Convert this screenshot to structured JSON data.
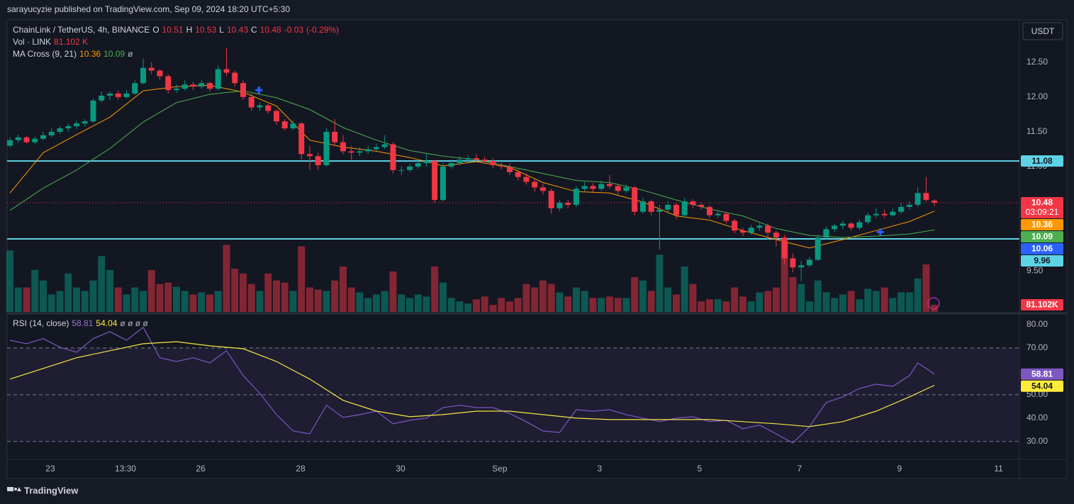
{
  "header": {
    "publisher": "sarayucyzie published on TradingView.com, Sep 09, 2024 18:20 UTC+5:30",
    "footer": "TradingView",
    "currency_button": "USDT"
  },
  "chart_data": {
    "type": "candlestick",
    "legend": {
      "symbol": "ChainLink / TetherUS, 4h, BINANCE",
      "o_label": "O",
      "open": 10.51,
      "h_label": "H",
      "high": 10.53,
      "l_label": "L",
      "low": 10.43,
      "c_label": "C",
      "close": 10.48,
      "change": -0.03,
      "change_pct": "(-0.29%)"
    },
    "volume_legend": {
      "name": "Vol · LINK",
      "value": "81.102 K"
    },
    "ma_legend": {
      "name": "MA Cross (9, 21)",
      "fast": 10.36,
      "slow": 10.09,
      "extra": "ø"
    },
    "colors": {
      "up": "#089981",
      "down": "#f23645"
    },
    "xlim": [
      -0.34,
      121.2
    ],
    "xticks": [
      {
        "value": 4.85,
        "label": "23"
      },
      {
        "value": 13.87,
        "label": "13:30"
      },
      {
        "value": 22.9,
        "label": "26"
      },
      {
        "value": 34.9,
        "label": "28"
      },
      {
        "value": 46.9,
        "label": "30"
      },
      {
        "value": 58.8,
        "label": "Sep"
      },
      {
        "value": 70.8,
        "label": "3"
      },
      {
        "value": 82.8,
        "label": "5"
      },
      {
        "value": 94.8,
        "label": "7"
      },
      {
        "value": 106.8,
        "label": "9"
      },
      {
        "value": 118.7,
        "label": "11"
      }
    ],
    "ylim": [
      8.91,
      13.11
    ],
    "yticks": [
      {
        "value": 9.5,
        "label": "9.50"
      },
      {
        "value": 11,
        "label": "11.00"
      },
      {
        "value": 11.5,
        "label": "11.50"
      },
      {
        "value": 12,
        "label": "12.00"
      },
      {
        "value": 12.5,
        "label": "12.50"
      }
    ],
    "candles": [
      [
        11.3,
        11.42,
        11.28,
        11.38
      ],
      [
        11.38,
        11.46,
        11.34,
        11.42
      ],
      [
        11.42,
        11.44,
        11.33,
        11.35
      ],
      [
        11.35,
        11.43,
        11.32,
        11.4
      ],
      [
        11.4,
        11.5,
        11.38,
        11.45
      ],
      [
        11.45,
        11.55,
        11.42,
        11.5
      ],
      [
        11.5,
        11.58,
        11.47,
        11.55
      ],
      [
        11.55,
        11.62,
        11.5,
        11.58
      ],
      [
        11.58,
        11.66,
        11.54,
        11.62
      ],
      [
        11.62,
        11.68,
        11.58,
        11.65
      ],
      [
        11.65,
        11.98,
        11.63,
        11.95
      ],
      [
        11.95,
        12.08,
        11.92,
        12.02
      ],
      [
        12.02,
        12.08,
        11.96,
        12.05
      ],
      [
        12.05,
        12.09,
        11.96,
        12.0
      ],
      [
        12.0,
        12.1,
        11.98,
        12.05
      ],
      [
        12.05,
        12.24,
        12.03,
        12.2
      ],
      [
        12.2,
        12.55,
        12.18,
        12.42
      ],
      [
        12.42,
        12.5,
        12.33,
        12.38
      ],
      [
        12.38,
        12.4,
        12.25,
        12.3
      ],
      [
        12.3,
        12.33,
        12.05,
        12.1
      ],
      [
        12.1,
        12.18,
        12.06,
        12.12
      ],
      [
        12.12,
        12.24,
        12.09,
        12.18
      ],
      [
        12.18,
        12.22,
        12.1,
        12.15
      ],
      [
        12.15,
        12.24,
        12.12,
        12.2
      ],
      [
        12.2,
        12.22,
        12.08,
        12.12
      ],
      [
        12.12,
        12.45,
        12.1,
        12.4
      ],
      [
        12.4,
        12.7,
        12.3,
        12.35
      ],
      [
        12.35,
        12.38,
        12.15,
        12.2
      ],
      [
        12.2,
        12.24,
        11.96,
        12.0
      ],
      [
        12.0,
        12.05,
        11.8,
        11.85
      ],
      [
        11.85,
        11.92,
        11.8,
        11.88
      ],
      [
        11.88,
        11.9,
        11.76,
        11.8
      ],
      [
        11.8,
        11.82,
        11.6,
        11.65
      ],
      [
        11.65,
        11.68,
        11.52,
        11.55
      ],
      [
        11.55,
        11.66,
        11.52,
        11.62
      ],
      [
        11.62,
        11.64,
        11.1,
        11.18
      ],
      [
        11.18,
        11.3,
        10.95,
        11.15
      ],
      [
        11.15,
        11.2,
        10.95,
        11.02
      ],
      [
        11.02,
        11.55,
        11.0,
        11.5
      ],
      [
        11.5,
        11.68,
        11.3,
        11.35
      ],
      [
        11.35,
        11.45,
        11.18,
        11.22
      ],
      [
        11.22,
        11.3,
        11.1,
        11.2
      ],
      [
        11.2,
        11.28,
        11.15,
        11.22
      ],
      [
        11.22,
        11.3,
        11.18,
        11.25
      ],
      [
        11.25,
        11.33,
        11.22,
        11.28
      ],
      [
        11.28,
        11.45,
        11.25,
        11.32
      ],
      [
        11.32,
        11.35,
        10.9,
        10.95
      ],
      [
        10.95,
        11.0,
        10.88,
        10.95
      ],
      [
        10.95,
        11.04,
        10.92,
        11.0
      ],
      [
        11.0,
        11.1,
        10.97,
        11.05
      ],
      [
        11.05,
        11.18,
        11.0,
        11.08
      ],
      [
        11.08,
        11.1,
        10.48,
        10.52
      ],
      [
        10.52,
        11.05,
        10.5,
        11.0
      ],
      [
        11.0,
        11.1,
        10.97,
        11.05
      ],
      [
        11.05,
        11.15,
        11.02,
        11.1
      ],
      [
        11.1,
        11.16,
        11.06,
        11.12
      ],
      [
        11.12,
        11.18,
        11.06,
        11.1
      ],
      [
        11.1,
        11.14,
        11.04,
        11.08
      ],
      [
        11.08,
        11.12,
        10.98,
        11.02
      ],
      [
        11.02,
        11.06,
        10.96,
        11.0
      ],
      [
        11.0,
        11.04,
        10.88,
        10.92
      ],
      [
        10.92,
        10.96,
        10.8,
        10.85
      ],
      [
        10.85,
        10.9,
        10.74,
        10.78
      ],
      [
        10.78,
        10.82,
        10.64,
        10.7
      ],
      [
        10.7,
        10.75,
        10.6,
        10.65
      ],
      [
        10.65,
        10.68,
        10.32,
        10.4
      ],
      [
        10.4,
        10.52,
        10.36,
        10.48
      ],
      [
        10.48,
        10.52,
        10.4,
        10.45
      ],
      [
        10.45,
        10.72,
        10.42,
        10.68
      ],
      [
        10.68,
        10.78,
        10.64,
        10.72
      ],
      [
        10.72,
        10.76,
        10.62,
        10.68
      ],
      [
        10.68,
        10.8,
        10.65,
        10.75
      ],
      [
        10.75,
        10.88,
        10.68,
        10.72
      ],
      [
        10.72,
        10.75,
        10.6,
        10.65
      ],
      [
        10.65,
        10.74,
        10.62,
        10.7
      ],
      [
        10.7,
        10.72,
        10.3,
        10.35
      ],
      [
        10.35,
        10.55,
        10.32,
        10.5
      ],
      [
        10.5,
        10.52,
        10.3,
        10.35
      ],
      [
        10.35,
        10.45,
        9.8,
        10.38
      ],
      [
        10.38,
        10.5,
        10.35,
        10.45
      ],
      [
        10.45,
        10.48,
        10.25,
        10.3
      ],
      [
        10.3,
        10.55,
        10.27,
        10.5
      ],
      [
        10.5,
        10.53,
        10.4,
        10.45
      ],
      [
        10.45,
        10.48,
        10.38,
        10.42
      ],
      [
        10.42,
        10.44,
        10.26,
        10.3
      ],
      [
        10.3,
        10.36,
        10.26,
        10.32
      ],
      [
        10.32,
        10.35,
        10.18,
        10.22
      ],
      [
        10.22,
        10.25,
        10.04,
        10.08
      ],
      [
        10.08,
        10.12,
        10.0,
        10.05
      ],
      [
        10.05,
        10.16,
        10.02,
        10.12
      ],
      [
        10.12,
        10.2,
        10.08,
        10.15
      ],
      [
        10.15,
        10.18,
        9.95,
        10.05
      ],
      [
        10.05,
        10.08,
        9.85,
        9.98
      ],
      [
        9.98,
        10.02,
        9.6,
        9.68
      ],
      [
        9.68,
        9.75,
        9.48,
        9.55
      ],
      [
        9.55,
        9.64,
        9.35,
        9.58
      ],
      [
        9.58,
        9.7,
        9.55,
        9.66
      ],
      [
        9.66,
        10.02,
        9.64,
        9.98
      ],
      [
        9.98,
        10.14,
        9.95,
        10.1
      ],
      [
        10.1,
        10.18,
        10.06,
        10.15
      ],
      [
        10.15,
        10.22,
        10.1,
        10.18
      ],
      [
        10.18,
        10.2,
        10.08,
        10.12
      ],
      [
        10.12,
        10.24,
        10.09,
        10.2
      ],
      [
        10.2,
        10.34,
        10.17,
        10.3
      ],
      [
        10.3,
        10.4,
        10.26,
        10.32
      ],
      [
        10.32,
        10.38,
        10.26,
        10.3
      ],
      [
        10.3,
        10.4,
        10.28,
        10.35
      ],
      [
        10.35,
        10.48,
        10.32,
        10.42
      ],
      [
        10.42,
        10.5,
        10.38,
        10.45
      ],
      [
        10.45,
        10.7,
        10.42,
        10.62
      ],
      [
        10.62,
        10.85,
        10.5,
        10.52
      ],
      [
        10.51,
        10.53,
        10.43,
        10.48
      ]
    ],
    "volume": {
      "ylim": [
        0,
        1300
      ],
      "last_label": "81.102K",
      "values": [
        704,
        280,
        280,
        480,
        360,
        200,
        240,
        440,
        280,
        240,
        360,
        640,
        480,
        280,
        200,
        280,
        240,
        480,
        320,
        336,
        288,
        240,
        200,
        224,
        200,
        240,
        768,
        496,
        440,
        320,
        240,
        440,
        360,
        336,
        240,
        752,
        280,
        256,
        240,
        360,
        520,
        280,
        224,
        160,
        200,
        240,
        464,
        200,
        160,
        200,
        176,
        520,
        336,
        160,
        120,
        96,
        144,
        176,
        80,
        160,
        120,
        160,
        320,
        280,
        360,
        320,
        224,
        176,
        280,
        240,
        160,
        160,
        176,
        160,
        160,
        400,
        360,
        240,
        656,
        280,
        200,
        520,
        320,
        120,
        144,
        144,
        120,
        280,
        176,
        120,
        224,
        240,
        280,
        800,
        400,
        320,
        120,
        360,
        224,
        160,
        200,
        240,
        144,
        264,
        240,
        280,
        160,
        224,
        224,
        384,
        544,
        81.102
      ]
    },
    "ma": [
      {
        "color": "#ff9800",
        "x": [
          0,
          4,
          8,
          12,
          16,
          20,
          24,
          28,
          32,
          36,
          40,
          44,
          48,
          52,
          56,
          60,
          64,
          68,
          72,
          76,
          80,
          84,
          88,
          92,
          96,
          100,
          104,
          108,
          111
        ],
        "values": [
          10.62,
          11.2,
          11.46,
          11.71,
          12.09,
          12.15,
          12.17,
          12.07,
          11.87,
          11.38,
          11.28,
          11.22,
          11.13,
          11.01,
          11.07,
          10.99,
          10.77,
          10.64,
          10.62,
          10.49,
          10.29,
          10.23,
          10.08,
          9.95,
          9.83,
          9.95,
          10.08,
          10.21,
          10.36
        ]
      },
      {
        "color": "#4caf50",
        "x": [
          0,
          4,
          8,
          12,
          16,
          20,
          24,
          28,
          32,
          36,
          40,
          44,
          48,
          52,
          56,
          60,
          64,
          68,
          72,
          76,
          80,
          84,
          88,
          92,
          96,
          100,
          104,
          108,
          111
        ],
        "values": [
          10.37,
          10.69,
          10.95,
          11.26,
          11.64,
          11.92,
          12.04,
          12.09,
          11.99,
          11.82,
          11.56,
          11.38,
          11.23,
          11.15,
          11.1,
          11.0,
          10.9,
          10.8,
          10.77,
          10.66,
          10.52,
          10.39,
          10.29,
          10.11,
          10.01,
          9.98,
          10.0,
          10.03,
          10.09
        ]
      }
    ],
    "cross_markers": {
      "color": "#2962ff",
      "x": [
        29.9,
        104.5
      ],
      "values": [
        12.1,
        10.06
      ]
    },
    "levels": [
      {
        "value": 11.08,
        "color": "#5fd3e6"
      },
      {
        "value": 9.96,
        "color": "#5fd3e6"
      }
    ],
    "last_price": {
      "value": 10.48,
      "color": "#f23645"
    },
    "price_labels": [
      {
        "value": 11.08,
        "bg": "#5fd3e6",
        "fg": "#131722"
      },
      {
        "value": 10.48,
        "bg": "#f23645",
        "fg": "#ffffff",
        "sub": "03:09:21"
      },
      {
        "value": 10.36,
        "bg": "#ff9800",
        "fg": "#ffffff"
      },
      {
        "value": 10.09,
        "bg": "#4caf50",
        "fg": "#ffffff"
      },
      {
        "value": 10.06,
        "bg": "#2962ff",
        "fg": "#ffffff"
      },
      {
        "value": 9.96,
        "bg": "#5fd3e6",
        "fg": "#131722"
      }
    ],
    "rsi": {
      "title": "RSI (14, close)",
      "value": 58.81,
      "ma_value": 54.04,
      "extra": "ø ø ø ø",
      "ylim": [
        23.3,
        83.9
      ],
      "yticks": [
        {
          "value": 30,
          "label": "30.00"
        },
        {
          "value": 40,
          "label": "40.00"
        },
        {
          "value": 50,
          "label": "50.00"
        },
        {
          "value": 70,
          "label": "70.00"
        },
        {
          "value": 80,
          "label": "80.00"
        }
      ],
      "band": [
        30,
        70
      ],
      "levels": [
        70,
        50,
        30
      ],
      "series": [
        {
          "color": "#7e57c2",
          "x": [
            0,
            2,
            4,
            6,
            8,
            10,
            12,
            14,
            16,
            18,
            20,
            22,
            24,
            26,
            28,
            30,
            32,
            34,
            36,
            38,
            40,
            42,
            44,
            46,
            48,
            50,
            52,
            54,
            56,
            58,
            60,
            62,
            64,
            66,
            68,
            70,
            72,
            74,
            76,
            78,
            80,
            82,
            84,
            86,
            88,
            90,
            92,
            94,
            96,
            98,
            100,
            102,
            104,
            106,
            108,
            109,
            111
          ],
          "values": [
            73.3,
            71.8,
            74,
            70.3,
            68.2,
            74,
            77,
            73.3,
            78.8,
            65.8,
            64.2,
            65.8,
            63.6,
            68.8,
            58.2,
            50.6,
            41.5,
            34.5,
            33.3,
            45.5,
            40.3,
            41.5,
            43,
            37.6,
            39.1,
            40,
            44.5,
            45.5,
            44.5,
            44.5,
            42,
            38.5,
            34.5,
            33.9,
            43.6,
            43,
            43.6,
            41.5,
            40,
            38.5,
            40,
            40.6,
            38.5,
            39.1,
            35.5,
            37,
            33.3,
            29.4,
            36.4,
            46.7,
            49.1,
            52.7,
            54.5,
            53.6,
            58.2,
            63.6,
            58.81
          ]
        },
        {
          "color": "#f5e642",
          "x": [
            0,
            8,
            16,
            20,
            24,
            28,
            32,
            36,
            40,
            44,
            48,
            52,
            56,
            60,
            64,
            68,
            72,
            76,
            80,
            84,
            88,
            92,
            96,
            100,
            104,
            108,
            111
          ],
          "values": [
            56.7,
            65.8,
            71.8,
            72.7,
            70.9,
            69.7,
            64.2,
            56.7,
            47.6,
            43,
            40.6,
            41.5,
            43,
            43,
            41.5,
            40,
            39.4,
            39.4,
            39.4,
            39.4,
            38.5,
            37.6,
            36.4,
            38.5,
            43,
            49.1,
            54.04
          ]
        }
      ],
      "labels": [
        {
          "value": 58.81,
          "bg": "#7e57c2",
          "fg": "#ffffff"
        },
        {
          "value": 54.04,
          "bg": "#ffeb3b",
          "fg": "#131722"
        }
      ]
    }
  }
}
